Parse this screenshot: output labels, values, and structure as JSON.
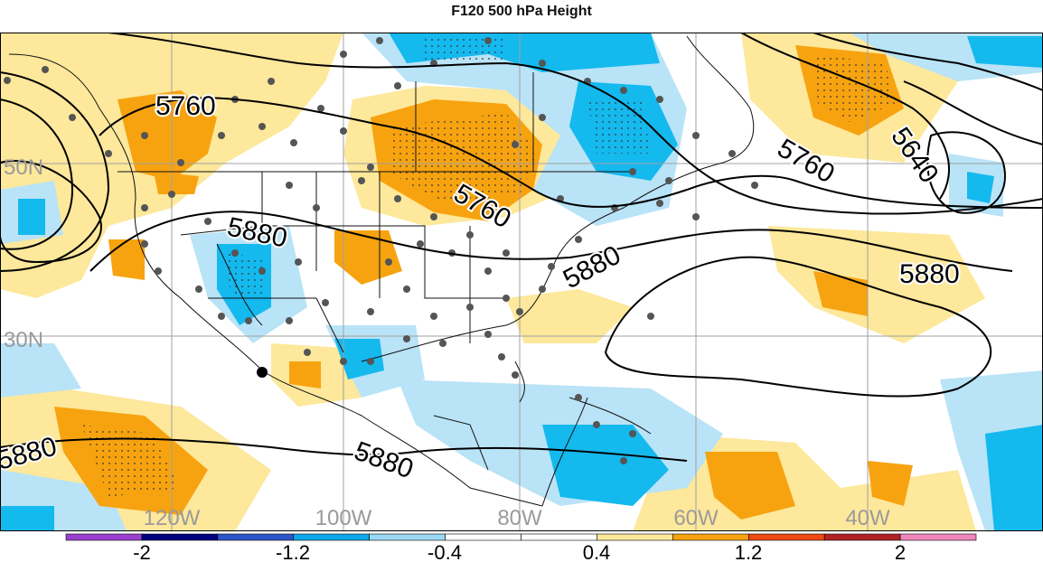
{
  "title": "F120 500 hPa Height",
  "map": {
    "lat_labels": [
      "50N",
      "30N"
    ],
    "lon_labels": [
      "120W",
      "100W",
      "80W",
      "60W",
      "40W"
    ],
    "contour_labels": [
      "5760",
      "5880",
      "5760",
      "5880",
      "5760",
      "5640",
      "5880",
      "5880",
      "5880"
    ],
    "positive_color": "#f7a310",
    "positive_light": "#fde89b",
    "negative_color": "#14b9ee",
    "negative_light": "#b9e3f7"
  },
  "colorbar": {
    "colors": [
      "#9b3fd1",
      "#00007d",
      "#2c55c9",
      "#0ca8ea",
      "#9ad8f4",
      "#ffffff",
      "#ffffff",
      "#fde89b",
      "#f7a310",
      "#ef4a12",
      "#b12227",
      "#f085bc"
    ],
    "labels": [
      "-2",
      "-1.2",
      "-0.4",
      "0.4",
      "1.2",
      "2"
    ]
  }
}
